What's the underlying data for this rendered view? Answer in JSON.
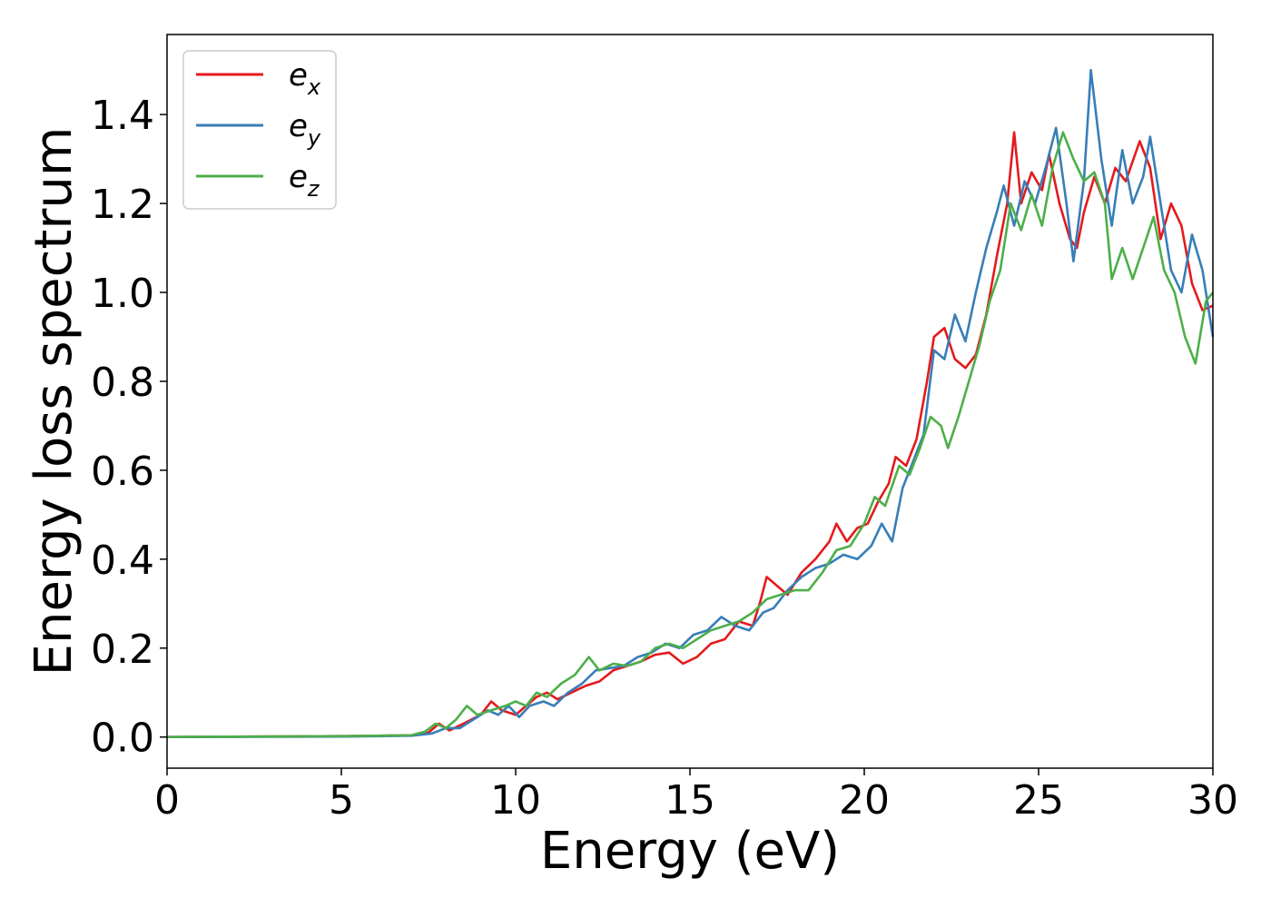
{
  "chart_data": {
    "type": "line",
    "title": "",
    "xlabel": "Energy (eV)",
    "ylabel": "Energy loss spectrum",
    "xlim": [
      0,
      30
    ],
    "ylim": [
      -0.07,
      1.58
    ],
    "xticks": [
      0,
      5,
      10,
      15,
      20,
      25,
      30
    ],
    "xtick_labels": [
      "0",
      "5",
      "10",
      "15",
      "20",
      "25",
      "30"
    ],
    "yticks": [
      0.0,
      0.2,
      0.4,
      0.6,
      0.8,
      1.0,
      1.2,
      1.4
    ],
    "ytick_labels": [
      "0.0",
      "0.2",
      "0.4",
      "0.6",
      "0.8",
      "1.0",
      "1.2",
      "1.4"
    ],
    "grid": false,
    "legend_position": "top-left",
    "series": [
      {
        "name": "e_x",
        "label_base": "e",
        "label_sub": "x",
        "color": "#e41a1c",
        "points": [
          [
            0,
            0
          ],
          [
            5,
            0.002
          ],
          [
            7,
            0.004
          ],
          [
            7.5,
            0.01
          ],
          [
            7.8,
            0.03
          ],
          [
            8.1,
            0.015
          ],
          [
            8.5,
            0.03
          ],
          [
            9.0,
            0.05
          ],
          [
            9.3,
            0.08
          ],
          [
            9.6,
            0.06
          ],
          [
            10.0,
            0.05
          ],
          [
            10.3,
            0.07
          ],
          [
            10.6,
            0.09
          ],
          [
            10.9,
            0.1
          ],
          [
            11.2,
            0.085
          ],
          [
            11.6,
            0.1
          ],
          [
            12.0,
            0.115
          ],
          [
            12.4,
            0.125
          ],
          [
            12.8,
            0.15
          ],
          [
            13.2,
            0.16
          ],
          [
            13.6,
            0.17
          ],
          [
            14.0,
            0.185
          ],
          [
            14.4,
            0.19
          ],
          [
            14.8,
            0.165
          ],
          [
            15.2,
            0.18
          ],
          [
            15.6,
            0.21
          ],
          [
            16.0,
            0.22
          ],
          [
            16.4,
            0.26
          ],
          [
            16.8,
            0.25
          ],
          [
            17.0,
            0.3
          ],
          [
            17.2,
            0.36
          ],
          [
            17.5,
            0.34
          ],
          [
            17.8,
            0.32
          ],
          [
            18.2,
            0.37
          ],
          [
            18.6,
            0.4
          ],
          [
            19.0,
            0.44
          ],
          [
            19.2,
            0.48
          ],
          [
            19.5,
            0.44
          ],
          [
            19.8,
            0.47
          ],
          [
            20.1,
            0.48
          ],
          [
            20.4,
            0.53
          ],
          [
            20.7,
            0.57
          ],
          [
            20.9,
            0.63
          ],
          [
            21.2,
            0.61
          ],
          [
            21.5,
            0.67
          ],
          [
            21.8,
            0.8
          ],
          [
            22.0,
            0.9
          ],
          [
            22.3,
            0.92
          ],
          [
            22.6,
            0.85
          ],
          [
            22.9,
            0.83
          ],
          [
            23.2,
            0.86
          ],
          [
            23.5,
            0.95
          ],
          [
            23.8,
            1.08
          ],
          [
            24.1,
            1.2
          ],
          [
            24.3,
            1.36
          ],
          [
            24.5,
            1.2
          ],
          [
            24.8,
            1.27
          ],
          [
            25.1,
            1.23
          ],
          [
            25.3,
            1.31
          ],
          [
            25.6,
            1.2
          ],
          [
            25.9,
            1.12
          ],
          [
            26.1,
            1.1
          ],
          [
            26.3,
            1.18
          ],
          [
            26.6,
            1.26
          ],
          [
            26.9,
            1.2
          ],
          [
            27.2,
            1.28
          ],
          [
            27.5,
            1.25
          ],
          [
            27.9,
            1.34
          ],
          [
            28.2,
            1.28
          ],
          [
            28.5,
            1.12
          ],
          [
            28.8,
            1.2
          ],
          [
            29.1,
            1.15
          ],
          [
            29.4,
            1.02
          ],
          [
            29.7,
            0.96
          ],
          [
            30.0,
            0.97
          ]
        ]
      },
      {
        "name": "e_y",
        "label_base": "e",
        "label_sub": "y",
        "color": "#377eb8",
        "points": [
          [
            0,
            0
          ],
          [
            5,
            0.001
          ],
          [
            7,
            0.003
          ],
          [
            7.6,
            0.008
          ],
          [
            8.0,
            0.02
          ],
          [
            8.4,
            0.02
          ],
          [
            8.8,
            0.04
          ],
          [
            9.2,
            0.06
          ],
          [
            9.5,
            0.05
          ],
          [
            9.8,
            0.07
          ],
          [
            10.1,
            0.045
          ],
          [
            10.4,
            0.07
          ],
          [
            10.8,
            0.08
          ],
          [
            11.1,
            0.07
          ],
          [
            11.5,
            0.1
          ],
          [
            11.9,
            0.12
          ],
          [
            12.3,
            0.15
          ],
          [
            12.7,
            0.155
          ],
          [
            13.1,
            0.16
          ],
          [
            13.5,
            0.18
          ],
          [
            13.9,
            0.19
          ],
          [
            14.3,
            0.21
          ],
          [
            14.7,
            0.2
          ],
          [
            15.1,
            0.23
          ],
          [
            15.5,
            0.24
          ],
          [
            15.9,
            0.27
          ],
          [
            16.3,
            0.25
          ],
          [
            16.7,
            0.24
          ],
          [
            17.1,
            0.28
          ],
          [
            17.4,
            0.29
          ],
          [
            17.8,
            0.33
          ],
          [
            18.2,
            0.36
          ],
          [
            18.6,
            0.38
          ],
          [
            19.0,
            0.39
          ],
          [
            19.4,
            0.41
          ],
          [
            19.8,
            0.4
          ],
          [
            20.2,
            0.43
          ],
          [
            20.5,
            0.48
          ],
          [
            20.8,
            0.44
          ],
          [
            21.1,
            0.56
          ],
          [
            21.4,
            0.62
          ],
          [
            21.7,
            0.68
          ],
          [
            22.0,
            0.87
          ],
          [
            22.3,
            0.85
          ],
          [
            22.6,
            0.95
          ],
          [
            22.9,
            0.89
          ],
          [
            23.2,
            1.0
          ],
          [
            23.5,
            1.1
          ],
          [
            23.8,
            1.18
          ],
          [
            24.0,
            1.24
          ],
          [
            24.3,
            1.15
          ],
          [
            24.6,
            1.25
          ],
          [
            24.9,
            1.2
          ],
          [
            25.2,
            1.28
          ],
          [
            25.5,
            1.37
          ],
          [
            25.8,
            1.2
          ],
          [
            26.0,
            1.07
          ],
          [
            26.3,
            1.25
          ],
          [
            26.5,
            1.5
          ],
          [
            26.8,
            1.3
          ],
          [
            27.1,
            1.15
          ],
          [
            27.4,
            1.32
          ],
          [
            27.7,
            1.2
          ],
          [
            28.0,
            1.26
          ],
          [
            28.2,
            1.35
          ],
          [
            28.5,
            1.2
          ],
          [
            28.8,
            1.05
          ],
          [
            29.1,
            1.0
          ],
          [
            29.4,
            1.13
          ],
          [
            29.7,
            1.05
          ],
          [
            30.0,
            0.9
          ]
        ]
      },
      {
        "name": "e_z",
        "label_base": "e",
        "label_sub": "z",
        "color": "#4daf4a",
        "points": [
          [
            0,
            0
          ],
          [
            5,
            0.002
          ],
          [
            7,
            0.004
          ],
          [
            7.4,
            0.012
          ],
          [
            7.7,
            0.03
          ],
          [
            8.0,
            0.02
          ],
          [
            8.3,
            0.04
          ],
          [
            8.6,
            0.07
          ],
          [
            8.9,
            0.05
          ],
          [
            9.3,
            0.06
          ],
          [
            9.7,
            0.07
          ],
          [
            10.0,
            0.08
          ],
          [
            10.3,
            0.07
          ],
          [
            10.6,
            0.1
          ],
          [
            10.9,
            0.09
          ],
          [
            11.3,
            0.12
          ],
          [
            11.7,
            0.14
          ],
          [
            12.1,
            0.18
          ],
          [
            12.4,
            0.15
          ],
          [
            12.8,
            0.165
          ],
          [
            13.2,
            0.16
          ],
          [
            13.6,
            0.17
          ],
          [
            14.0,
            0.2
          ],
          [
            14.4,
            0.21
          ],
          [
            14.8,
            0.2
          ],
          [
            15.2,
            0.22
          ],
          [
            15.6,
            0.24
          ],
          [
            16.0,
            0.25
          ],
          [
            16.4,
            0.26
          ],
          [
            16.8,
            0.28
          ],
          [
            17.2,
            0.31
          ],
          [
            17.6,
            0.32
          ],
          [
            18.0,
            0.33
          ],
          [
            18.4,
            0.33
          ],
          [
            18.8,
            0.37
          ],
          [
            19.2,
            0.42
          ],
          [
            19.6,
            0.43
          ],
          [
            20.0,
            0.48
          ],
          [
            20.3,
            0.54
          ],
          [
            20.6,
            0.52
          ],
          [
            21.0,
            0.61
          ],
          [
            21.3,
            0.59
          ],
          [
            21.6,
            0.65
          ],
          [
            21.9,
            0.72
          ],
          [
            22.2,
            0.7
          ],
          [
            22.4,
            0.65
          ],
          [
            22.7,
            0.72
          ],
          [
            23.0,
            0.8
          ],
          [
            23.3,
            0.88
          ],
          [
            23.6,
            0.98
          ],
          [
            23.9,
            1.05
          ],
          [
            24.2,
            1.2
          ],
          [
            24.5,
            1.14
          ],
          [
            24.8,
            1.22
          ],
          [
            25.1,
            1.15
          ],
          [
            25.4,
            1.28
          ],
          [
            25.7,
            1.36
          ],
          [
            26.0,
            1.3
          ],
          [
            26.3,
            1.25
          ],
          [
            26.6,
            1.27
          ],
          [
            26.9,
            1.2
          ],
          [
            27.1,
            1.03
          ],
          [
            27.4,
            1.1
          ],
          [
            27.7,
            1.03
          ],
          [
            28.0,
            1.1
          ],
          [
            28.3,
            1.17
          ],
          [
            28.6,
            1.05
          ],
          [
            28.9,
            1.0
          ],
          [
            29.2,
            0.9
          ],
          [
            29.5,
            0.84
          ],
          [
            29.8,
            0.98
          ],
          [
            30.0,
            1.0
          ]
        ]
      }
    ]
  }
}
